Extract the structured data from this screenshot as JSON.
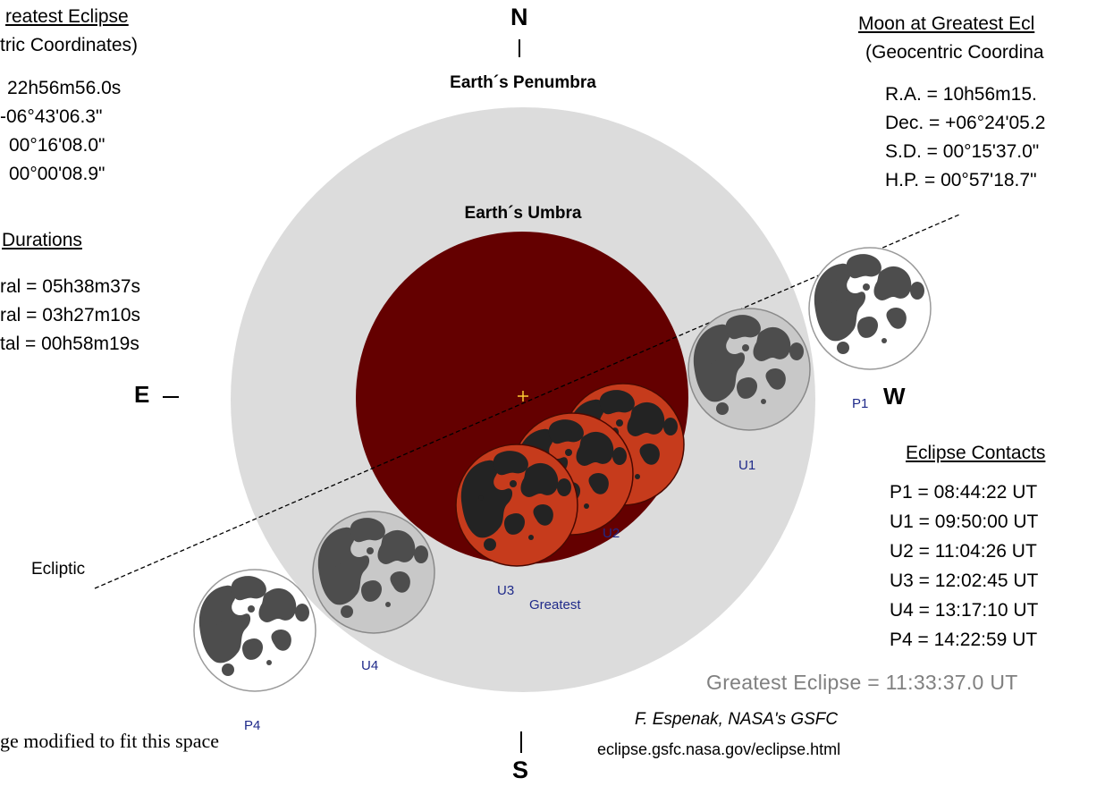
{
  "colors": {
    "penumbra": "#dcdcdc",
    "umbra": "#640000",
    "moon_white": "#ffffff",
    "moon_gray": "#c8c8c8",
    "moon_eclipsed": "#c63b1c",
    "maria": "#4d4d4d",
    "maria_eclipsed": "#232323",
    "contact_label": "#1f2a8a",
    "crosshair": "#ffcc33",
    "greatest_time_text": "#808080"
  },
  "diagram": {
    "compass": {
      "north": "N",
      "south": "S",
      "east": "E",
      "west": "W"
    },
    "shadows": {
      "penumbra_label": "Earth´s Penumbra",
      "umbra_label": "Earth´s Umbra"
    },
    "ecliptic_label": "Ecliptic",
    "moon_labels": {
      "p1": "P1",
      "u1": "U1",
      "u2": "U2",
      "greatest": "Greatest",
      "u3": "U3",
      "u4": "U4",
      "p4": "P4"
    }
  },
  "left_panel": {
    "greatest_eclipse": {
      "title": "reatest Eclipse",
      "subtitle": "tric Coordinates)",
      "values": [
        "22h56m56.0s",
        "-06°43'06.3\"",
        "00°16'08.0\"",
        "00°00'08.9\""
      ]
    },
    "durations": {
      "title": "Durations",
      "rows": [
        "ral = 05h38m37s",
        "ral = 03h27m10s",
        "tal = 00h58m19s"
      ]
    }
  },
  "right_panel": {
    "moon": {
      "title": "Moon at Greatest Ecl",
      "subtitle": "(Geocentric Coordina",
      "rows": [
        "R.A. = 10h56m15.",
        "Dec. = +06°24'05.2",
        "S.D. = 00°15'37.0\"",
        "H.P. = 00°57'18.7\""
      ]
    },
    "contacts": {
      "title": "Eclipse Contacts",
      "rows": [
        "P1 = 08:44:22 UT",
        "U1 = 09:50:00 UT",
        "U2 = 11:04:26 UT",
        "U3 = 12:02:45 UT",
        "U4 = 13:17:10 UT",
        "P4 = 14:22:59 UT"
      ]
    },
    "greatest_time": "Greatest Eclipse = 11:33:37.0 UT",
    "credit": "F. Espenak, NASA's GSFC",
    "url": "eclipse.gsfc.nasa.gov/eclipse.html"
  },
  "caption": "ge modified to fit this space"
}
